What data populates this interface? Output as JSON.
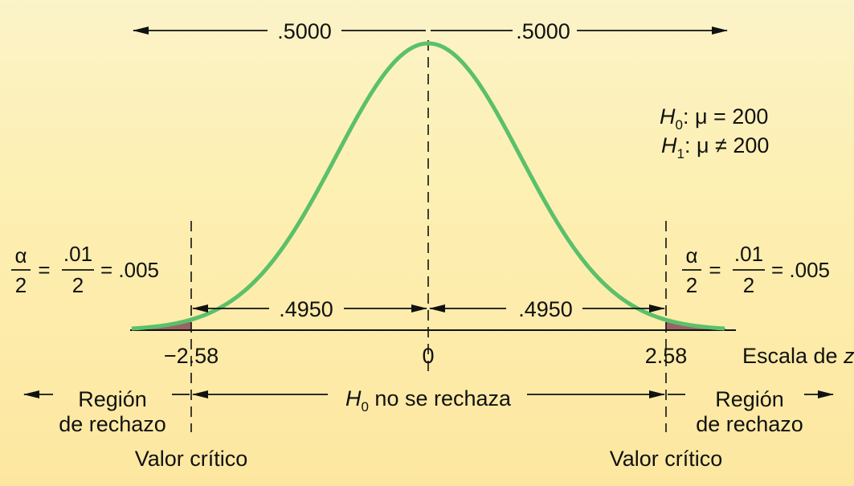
{
  "colors": {
    "curve": "#5bc06a",
    "tail_fill": "#9b6266",
    "axis": "#111111",
    "bg_top": "#fbf3c9",
    "bg_bottom": "#fde7a0"
  },
  "top_area_left": ".5000",
  "top_area_right": ".5000",
  "hypotheses": {
    "h0_sym": "H",
    "h0_sub": "0",
    "h0_rest": ": μ = 200",
    "h1_sym": "H",
    "h1_sub": "1",
    "h1_rest": ": μ ≠ 200"
  },
  "alpha_left": {
    "alpha": "α",
    "two": "2",
    "eq1": "=",
    "num": ".01",
    "den": "2",
    "result": "= .005"
  },
  "alpha_right": {
    "alpha": "α",
    "two": "2",
    "eq1": "=",
    "num": ".01",
    "den": "2",
    "result": "= .005"
  },
  "inner_area_left": ".4950",
  "inner_area_right": ".4950",
  "z_axis": {
    "tick_left": "−2.58",
    "tick_center": "0",
    "tick_right": "2.58",
    "scale_label": "Escala de",
    "scale_var": "z"
  },
  "regions": {
    "reject_left_line1": "Región",
    "reject_left_line2": "de rechazo",
    "accept_sym": "H",
    "accept_sub": "0",
    "accept_rest": " no se rechaza",
    "reject_right_line1": "Región",
    "reject_right_line2": "de rechazo"
  },
  "critical_left": "Valor crítico",
  "critical_right": "Valor crítico",
  "distribution": {
    "mean": 0,
    "critical_z": 2.58,
    "tail_area_each": 0.005
  }
}
